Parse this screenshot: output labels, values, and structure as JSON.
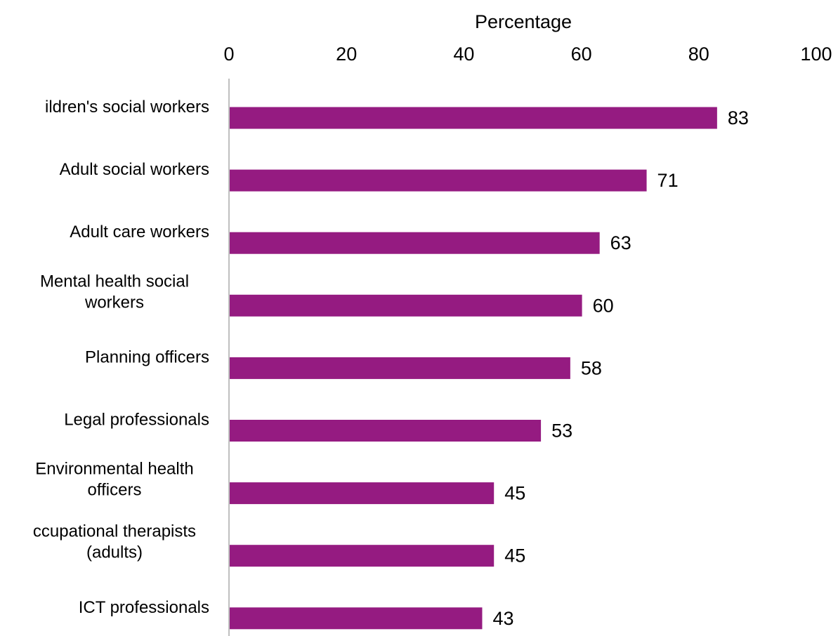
{
  "chart_data": {
    "type": "bar",
    "orientation": "horizontal",
    "title": "",
    "xlabel": "Percentage",
    "ylabel": "",
    "xaxis_position": "top",
    "xlim": [
      0,
      100
    ],
    "xticks": [
      0,
      20,
      40,
      60,
      80,
      100
    ],
    "grid": false,
    "legend": "none",
    "bar_color": "#951b81",
    "categories": [
      [
        "ildren's social workers"
      ],
      [
        "Adult social workers"
      ],
      [
        "Adult care workers"
      ],
      [
        "Mental health social",
        "workers"
      ],
      [
        "Planning officers"
      ],
      [
        "Legal professionals"
      ],
      [
        "Environmental health",
        "officers"
      ],
      [
        "ccupational therapists",
        "(adults)"
      ],
      [
        "ICT professionals"
      ]
    ],
    "values": [
      83,
      71,
      63,
      60,
      58,
      53,
      45,
      45,
      43
    ]
  }
}
